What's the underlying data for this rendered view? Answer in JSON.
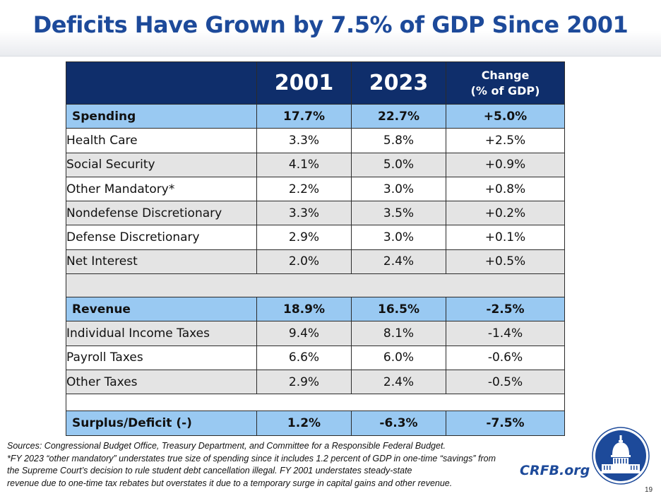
{
  "title": "Deficits Have Grown by 7.5% of GDP Since 2001",
  "table": {
    "headers": {
      "col1": "2001",
      "col2": "2023",
      "change_line1": "Change",
      "change_line2": "(% of GDP)"
    },
    "rows": [
      {
        "label": "Spending",
        "v2001": "17.7%",
        "v2023": "22.7%",
        "change": "+5.0%"
      },
      {
        "label": "Health Care",
        "v2001": "3.3%",
        "v2023": "5.8%",
        "change": "+2.5%"
      },
      {
        "label": "Social Security",
        "v2001": "4.1%",
        "v2023": "5.0%",
        "change": "+0.9%"
      },
      {
        "label": "Other Mandatory*",
        "v2001": "2.2%",
        "v2023": "3.0%",
        "change": "+0.8%"
      },
      {
        "label": "Nondefense Discretionary",
        "v2001": "3.3%",
        "v2023": "3.5%",
        "change": "+0.2%"
      },
      {
        "label": "Defense Discretionary",
        "v2001": "2.9%",
        "v2023": "3.0%",
        "change": "+0.1%"
      },
      {
        "label": "Net Interest",
        "v2001": "2.0%",
        "v2023": "2.4%",
        "change": "+0.5%"
      },
      {
        "label": "Revenue",
        "v2001": "18.9%",
        "v2023": "16.5%",
        "change": "-2.5%"
      },
      {
        "label": "Individual Income Taxes",
        "v2001": "9.4%",
        "v2023": "8.1%",
        "change": "-1.4%"
      },
      {
        "label": "Payroll Taxes",
        "v2001": "6.6%",
        "v2023": "6.0%",
        "change": "-0.6%"
      },
      {
        "label": "Other Taxes",
        "v2001": "2.9%",
        "v2023": "2.4%",
        "change": "-0.5%"
      },
      {
        "label": "Surplus/Deficit (-)",
        "v2001": "1.2%",
        "v2023": "-6.3%",
        "change": "-7.5%"
      }
    ]
  },
  "notes": [
    "Sources: Congressional Budget Office, Treasury Department, and Committee for a Responsible Federal Budget.",
    "*FY 2023 “other mandatory” understates true size of spending since it includes 1.2 percent of GDP in one-time “savings” from",
    "the Supreme Court’s decision to rule student debt cancellation illegal. FY 2001 understates steady-state",
    "revenue due to one-time tax rebates but overstates it due to a temporary surge in capital gains and other revenue."
  ],
  "brand": "CRFB.org",
  "page_number": "19",
  "colors": {
    "title": "#1d4a9a",
    "header_fill": "#0f2e6b",
    "category_fill": "#99c9f2",
    "shaded_row": "#e4e4e4"
  }
}
